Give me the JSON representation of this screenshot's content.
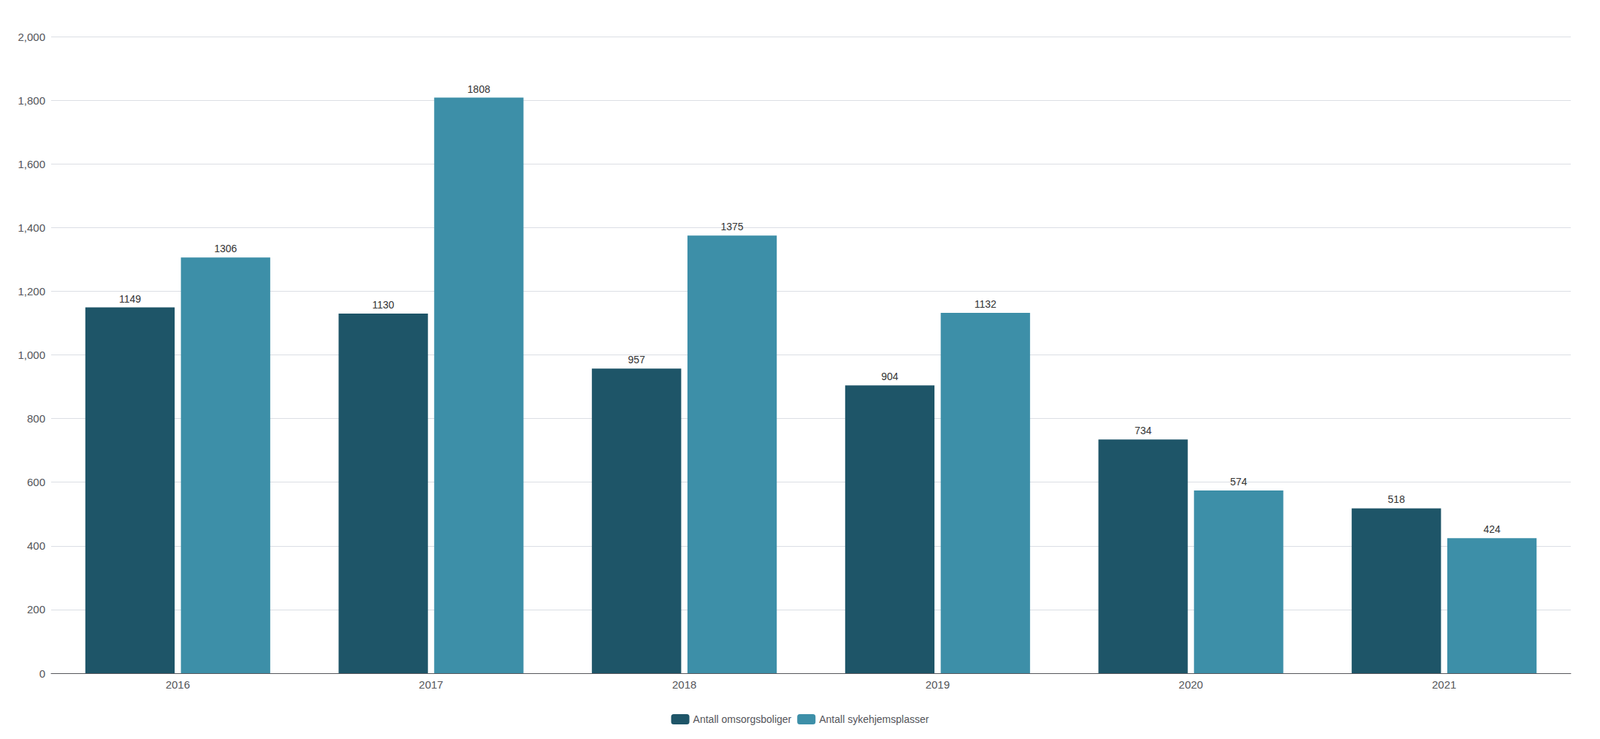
{
  "chart_data": {
    "type": "bar",
    "categories": [
      "2016",
      "2017",
      "2018",
      "2019",
      "2020",
      "2021"
    ],
    "series": [
      {
        "name": "Antall omsorgsboliger",
        "color": "#1e5568",
        "values": [
          1149,
          1130,
          957,
          904,
          734,
          518
        ]
      },
      {
        "name": "Antall sykehjemsplasser",
        "color": "#3d8fa8",
        "values": [
          1306,
          1808,
          1375,
          1132,
          574,
          424
        ]
      }
    ],
    "ylim": [
      0,
      2000
    ],
    "yticks": [
      0,
      200,
      400,
      600,
      800,
      1000,
      1200,
      1400,
      1600,
      1800,
      2000
    ],
    "grid": true,
    "legend": "bottom",
    "data_labels": true
  }
}
